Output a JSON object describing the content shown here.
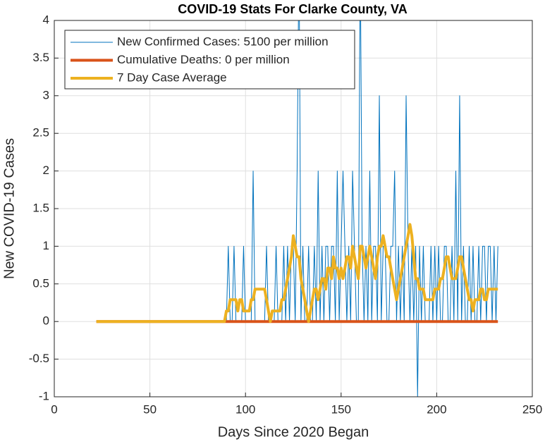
{
  "chart_data": {
    "type": "line",
    "title": "COVID-19 Stats For Clarke County, VA",
    "xlabel": "Days Since 2020 Began",
    "ylabel": "New COVID-19 Cases",
    "xlim": [
      0,
      250
    ],
    "xticks": [
      0,
      50,
      100,
      150,
      200,
      250
    ],
    "ylim": [
      -1,
      4
    ],
    "yticks": [
      -1,
      -0.5,
      0,
      0.5,
      1,
      1.5,
      2,
      2.5,
      3,
      3.5,
      4
    ],
    "grid": true,
    "legend": "upper left",
    "x": [
      22,
      23,
      24,
      25,
      26,
      27,
      28,
      29,
      30,
      31,
      32,
      33,
      34,
      35,
      36,
      37,
      38,
      39,
      40,
      41,
      42,
      43,
      44,
      45,
      46,
      47,
      48,
      49,
      50,
      51,
      52,
      53,
      54,
      55,
      56,
      57,
      58,
      59,
      60,
      61,
      62,
      63,
      64,
      65,
      66,
      67,
      68,
      69,
      70,
      71,
      72,
      73,
      74,
      75,
      76,
      77,
      78,
      79,
      80,
      81,
      82,
      83,
      84,
      85,
      86,
      87,
      88,
      89,
      90,
      91,
      92,
      93,
      94,
      95,
      96,
      97,
      98,
      99,
      100,
      101,
      102,
      103,
      104,
      105,
      106,
      107,
      108,
      109,
      110,
      111,
      112,
      113,
      114,
      115,
      116,
      117,
      118,
      119,
      120,
      121,
      122,
      123,
      124,
      125,
      126,
      127,
      128,
      129,
      130,
      131,
      132,
      133,
      134,
      135,
      136,
      137,
      138,
      139,
      140,
      141,
      142,
      143,
      144,
      145,
      146,
      147,
      148,
      149,
      150,
      151,
      152,
      153,
      154,
      155,
      156,
      157,
      158,
      159,
      160,
      161,
      162,
      163,
      164,
      165,
      166,
      167,
      168,
      169,
      170,
      171,
      172,
      173,
      174,
      175,
      176,
      177,
      178,
      179,
      180,
      181,
      182,
      183,
      184,
      185,
      186,
      187,
      188,
      189,
      190,
      191,
      192,
      193,
      194,
      195,
      196,
      197,
      198,
      199,
      200,
      201,
      202,
      203,
      204,
      205,
      206,
      207,
      208,
      209,
      210,
      211,
      212,
      213,
      214,
      215,
      216,
      217,
      218,
      219,
      220,
      221,
      222,
      223,
      224,
      225,
      226,
      227,
      228,
      229,
      230,
      231,
      232
    ],
    "series": [
      {
        "name": "New Confirmed Cases: 5100 per million",
        "color": "#0072bd",
        "width": 1,
        "values": [
          0,
          0,
          0,
          0,
          0,
          0,
          0,
          0,
          0,
          0,
          0,
          0,
          0,
          0,
          0,
          0,
          0,
          0,
          0,
          0,
          0,
          0,
          0,
          0,
          0,
          0,
          0,
          0,
          0,
          0,
          0,
          0,
          0,
          0,
          0,
          0,
          0,
          0,
          0,
          0,
          0,
          0,
          0,
          0,
          0,
          0,
          0,
          0,
          0,
          0,
          0,
          0,
          0,
          0,
          0,
          0,
          0,
          0,
          0,
          0,
          0,
          0,
          0,
          0,
          0,
          0,
          0,
          0,
          0,
          1,
          0,
          0,
          1,
          0,
          0,
          0,
          0,
          1,
          0,
          0,
          0,
          0,
          2,
          0,
          0,
          0,
          0,
          0,
          0,
          1,
          0,
          0,
          0,
          0,
          1,
          0,
          0,
          0,
          1,
          0,
          1,
          0,
          1,
          1,
          0,
          2,
          5,
          0,
          1,
          0,
          0,
          1,
          0,
          0,
          1,
          0,
          2,
          0,
          1,
          0,
          1,
          1,
          0,
          1,
          1,
          0,
          2,
          0,
          1,
          2,
          1,
          0,
          1,
          0,
          2,
          1,
          0,
          0,
          5,
          1,
          0,
          1,
          0,
          2,
          0,
          1,
          1,
          0,
          3,
          0,
          1,
          1,
          0,
          0,
          1,
          1,
          2,
          0,
          1,
          0,
          1,
          0,
          3,
          1,
          0,
          1,
          0,
          1,
          -1,
          1,
          0,
          1,
          0,
          0,
          0,
          1,
          0,
          1,
          0,
          1,
          0,
          0,
          1,
          1,
          0,
          0,
          1,
          0,
          2,
          0,
          3,
          0,
          1,
          0,
          0,
          1,
          0,
          1,
          0,
          0,
          1,
          0,
          1,
          1,
          0,
          1,
          1,
          0,
          1,
          0,
          1
        ]
      },
      {
        "name": "Cumulative Deaths: 0 per million",
        "color": "#d95319",
        "width": 4,
        "values": [
          0,
          0,
          0,
          0,
          0,
          0,
          0,
          0,
          0,
          0,
          0,
          0,
          0,
          0,
          0,
          0,
          0,
          0,
          0,
          0,
          0,
          0,
          0,
          0,
          0,
          0,
          0,
          0,
          0,
          0,
          0,
          0,
          0,
          0,
          0,
          0,
          0,
          0,
          0,
          0,
          0,
          0,
          0,
          0,
          0,
          0,
          0,
          0,
          0,
          0,
          0,
          0,
          0,
          0,
          0,
          0,
          0,
          0,
          0,
          0,
          0,
          0,
          0,
          0,
          0,
          0,
          0,
          0,
          0,
          0,
          0,
          0,
          0,
          0,
          0,
          0,
          0,
          0,
          0,
          0,
          0,
          0,
          0,
          0,
          0,
          0,
          0,
          0,
          0,
          0,
          0,
          0,
          0,
          0,
          0,
          0,
          0,
          0,
          0,
          0,
          0,
          0,
          0,
          0,
          0,
          0,
          0,
          0,
          0,
          0,
          0,
          0,
          0,
          0,
          0,
          0,
          0,
          0,
          0,
          0,
          0,
          0,
          0,
          0,
          0,
          0,
          0,
          0,
          0,
          0,
          0,
          0,
          0,
          0,
          0,
          0,
          0,
          0,
          0,
          0,
          0,
          0,
          0,
          0,
          0,
          0,
          0,
          0,
          0,
          0,
          0,
          0,
          0,
          0,
          0,
          0,
          0,
          0,
          0,
          0,
          0,
          0,
          0,
          0,
          0,
          0,
          0,
          0,
          0,
          0,
          0,
          0,
          0,
          0,
          0,
          0,
          0,
          0,
          0,
          0,
          0,
          0,
          0,
          0,
          0,
          0,
          0,
          0,
          0,
          0,
          0,
          0,
          0,
          0,
          0,
          0,
          0,
          0,
          0,
          0,
          0,
          0,
          0,
          0,
          0,
          0,
          0,
          0,
          0,
          0,
          0
        ]
      },
      {
        "name": "7 Day Case Average",
        "color": "#edb120",
        "width": 4,
        "values": [
          0,
          0,
          0,
          0,
          0,
          0,
          0,
          0,
          0,
          0,
          0,
          0,
          0,
          0,
          0,
          0,
          0,
          0,
          0,
          0,
          0,
          0,
          0,
          0,
          0,
          0,
          0,
          0,
          0,
          0,
          0,
          0,
          0,
          0,
          0,
          0,
          0,
          0,
          0,
          0,
          0,
          0,
          0,
          0,
          0,
          0,
          0,
          0,
          0,
          0,
          0,
          0,
          0,
          0,
          0,
          0,
          0,
          0,
          0,
          0,
          0,
          0,
          0,
          0,
          0,
          0,
          0,
          0,
          0.14,
          0.14,
          0.29,
          0.29,
          0.29,
          0.29,
          0.14,
          0.29,
          0.29,
          0.14,
          0.14,
          0.14,
          0.14,
          0.29,
          0.29,
          0.43,
          0.43,
          0.43,
          0.43,
          0.43,
          0.43,
          0.29,
          0.14,
          0,
          0.14,
          0.14,
          0.14,
          0.14,
          0.14,
          0.29,
          0.29,
          0.43,
          0.57,
          0.71,
          0.86,
          1.14,
          1,
          0.86,
          0.86,
          0.57,
          0.43,
          0.29,
          0.14,
          0,
          0.14,
          0.29,
          0.43,
          0.43,
          0.29,
          0.43,
          0.57,
          0.57,
          0.43,
          0.71,
          0.71,
          0.57,
          0.86,
          0.71,
          0.71,
          0.57,
          0.71,
          0.57,
          0.71,
          0.86,
          0.86,
          0.71,
          1,
          0.86,
          0.71,
          0.57,
          1,
          1,
          0.86,
          0.71,
          0.86,
          1,
          0.86,
          0.71,
          0.57,
          0.86,
          1,
          1,
          1.14,
          1,
          0.86,
          0.86,
          0.71,
          0.57,
          0.43,
          0.29,
          0.43,
          0.57,
          0.71,
          0.86,
          1,
          1.14,
          1.29,
          1.14,
          0.86,
          0.57,
          0.57,
          0.43,
          0.43,
          0.43,
          0.29,
          0.29,
          0.29,
          0.29,
          0.29,
          0.43,
          0.43,
          0.43,
          0.57,
          0.57,
          0.71,
          0.86,
          0.86,
          0.71,
          0.57,
          0.57,
          0.57,
          0.71,
          0.86,
          0.86,
          0.71,
          0.57,
          0.43,
          0.29,
          0.29,
          0.14,
          0.29,
          0.29,
          0.29,
          0.43,
          0.43,
          0.29,
          0.29,
          0.43,
          0.43,
          0.43,
          0.43,
          0.43,
          0.43
        ]
      }
    ]
  }
}
